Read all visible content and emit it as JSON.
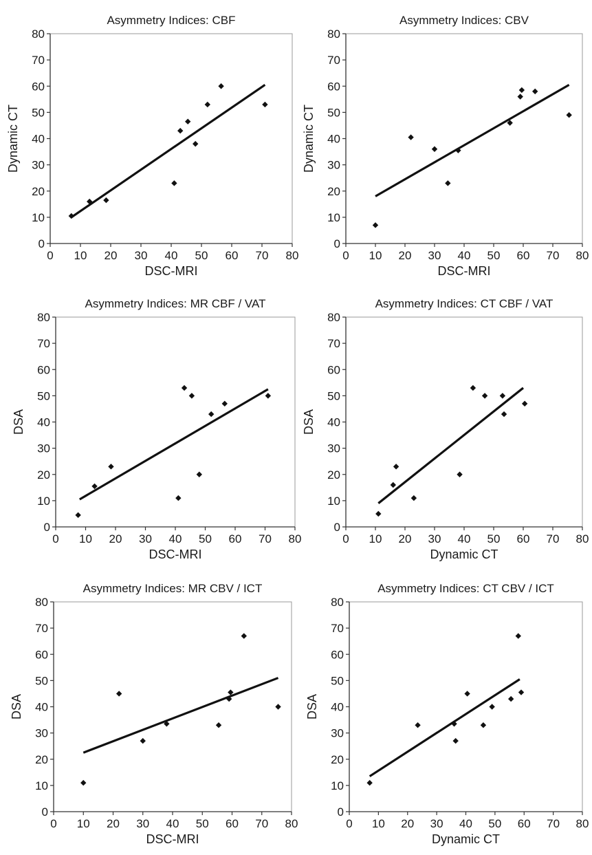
{
  "chart_data": [
    {
      "type": "scatter",
      "title": "Asymmetry Indices: CBF",
      "xlabel": "DSC-MRI",
      "ylabel": "Dynamic CT",
      "xlim": [
        0,
        80
      ],
      "ylim": [
        0,
        80
      ],
      "xticks": [
        0,
        10,
        20,
        30,
        40,
        50,
        60,
        70,
        80
      ],
      "yticks": [
        0,
        10,
        20,
        30,
        40,
        50,
        60,
        70,
        80
      ],
      "grid": false,
      "marker": "diamond",
      "points": [
        [
          7,
          10.5
        ],
        [
          13,
          16
        ],
        [
          18.5,
          16.5
        ],
        [
          41,
          23
        ],
        [
          43,
          43
        ],
        [
          45.5,
          46.5
        ],
        [
          48,
          38
        ],
        [
          52,
          53
        ],
        [
          56.5,
          60
        ],
        [
          71,
          53
        ]
      ],
      "trendline": [
        [
          7,
          10
        ],
        [
          71,
          60.5
        ]
      ]
    },
    {
      "type": "scatter",
      "title": "Asymmetry Indices: CBV",
      "xlabel": "DSC-MRI",
      "ylabel": "Dynamic CT",
      "xlim": [
        0,
        80
      ],
      "ylim": [
        0,
        80
      ],
      "xticks": [
        0,
        10,
        20,
        30,
        40,
        50,
        60,
        70,
        80
      ],
      "yticks": [
        0,
        10,
        20,
        30,
        40,
        50,
        60,
        70,
        80
      ],
      "grid": false,
      "marker": "diamond",
      "points": [
        [
          10,
          7
        ],
        [
          22,
          40.5
        ],
        [
          30,
          36
        ],
        [
          34.5,
          23
        ],
        [
          38,
          35.5
        ],
        [
          55.5,
          46
        ],
        [
          59,
          56
        ],
        [
          59.5,
          58.5
        ],
        [
          64,
          58
        ],
        [
          75.5,
          49
        ]
      ],
      "trendline": [
        [
          10,
          18
        ],
        [
          75.5,
          60.5
        ]
      ]
    },
    {
      "type": "scatter",
      "title": "Asymmetry Indices: MR CBF / VAT",
      "xlabel": "DSC-MRI",
      "ylabel": "DSA",
      "xlim": [
        0,
        80
      ],
      "ylim": [
        0,
        80
      ],
      "xticks": [
        0,
        10,
        20,
        30,
        40,
        50,
        60,
        70,
        80
      ],
      "yticks": [
        0,
        10,
        20,
        30,
        40,
        50,
        60,
        70,
        80
      ],
      "grid": false,
      "marker": "diamond",
      "points": [
        [
          7.5,
          4.5
        ],
        [
          13,
          15.5
        ],
        [
          18.5,
          23
        ],
        [
          41,
          11
        ],
        [
          43,
          53
        ],
        [
          45.5,
          50
        ],
        [
          48,
          20
        ],
        [
          52,
          43
        ],
        [
          56.5,
          47
        ],
        [
          71,
          50
        ]
      ],
      "trendline": [
        [
          8,
          10.5
        ],
        [
          71,
          52.5
        ]
      ]
    },
    {
      "type": "scatter",
      "title": "Asymmetry Indices: CT CBF / VAT",
      "xlabel": "Dynamic CT",
      "ylabel": "DSA",
      "xlim": [
        0,
        80
      ],
      "ylim": [
        0,
        80
      ],
      "xticks": [
        0,
        10,
        20,
        30,
        40,
        50,
        60,
        70,
        80
      ],
      "yticks": [
        0,
        10,
        20,
        30,
        40,
        50,
        60,
        70,
        80
      ],
      "grid": false,
      "marker": "diamond",
      "points": [
        [
          11,
          5
        ],
        [
          16,
          16
        ],
        [
          17,
          23
        ],
        [
          23,
          11
        ],
        [
          38.5,
          20
        ],
        [
          43,
          53
        ],
        [
          47,
          50
        ],
        [
          53,
          50
        ],
        [
          53.5,
          43
        ],
        [
          60.5,
          47
        ]
      ],
      "trendline": [
        [
          11,
          9
        ],
        [
          60,
          53
        ]
      ]
    },
    {
      "type": "scatter",
      "title": "Asymmetry Indices: MR CBV / ICT",
      "xlabel": "DSC-MRI",
      "ylabel": "DSA",
      "xlim": [
        0,
        80
      ],
      "ylim": [
        0,
        80
      ],
      "xticks": [
        0,
        10,
        20,
        30,
        40,
        50,
        60,
        70,
        80
      ],
      "yticks": [
        0,
        10,
        20,
        30,
        40,
        50,
        60,
        70,
        80
      ],
      "grid": false,
      "marker": "diamond",
      "points": [
        [
          10,
          11
        ],
        [
          22,
          45
        ],
        [
          30,
          27
        ],
        [
          38,
          33.5
        ],
        [
          55.5,
          33
        ],
        [
          59,
          43
        ],
        [
          59.5,
          45.5
        ],
        [
          64,
          67
        ],
        [
          75.5,
          40
        ]
      ],
      "trendline": [
        [
          10,
          22.5
        ],
        [
          75.5,
          51
        ]
      ]
    },
    {
      "type": "scatter",
      "title": "Asymmetry Indices: CT CBV / ICT",
      "xlabel": "Dynamic CT",
      "ylabel": "DSA",
      "xlim": [
        0,
        80
      ],
      "ylim": [
        0,
        80
      ],
      "xticks": [
        0,
        10,
        20,
        30,
        40,
        50,
        60,
        70,
        80
      ],
      "yticks": [
        0,
        10,
        20,
        30,
        40,
        50,
        60,
        70,
        80
      ],
      "grid": false,
      "marker": "diamond",
      "points": [
        [
          7,
          11
        ],
        [
          23.5,
          33
        ],
        [
          36,
          33.5
        ],
        [
          36.5,
          27
        ],
        [
          40.5,
          45
        ],
        [
          46,
          33
        ],
        [
          49,
          40
        ],
        [
          55.5,
          43
        ],
        [
          58,
          67
        ],
        [
          59,
          45.5
        ]
      ],
      "trendline": [
        [
          7,
          13.5
        ],
        [
          58.5,
          50.5
        ]
      ]
    }
  ]
}
